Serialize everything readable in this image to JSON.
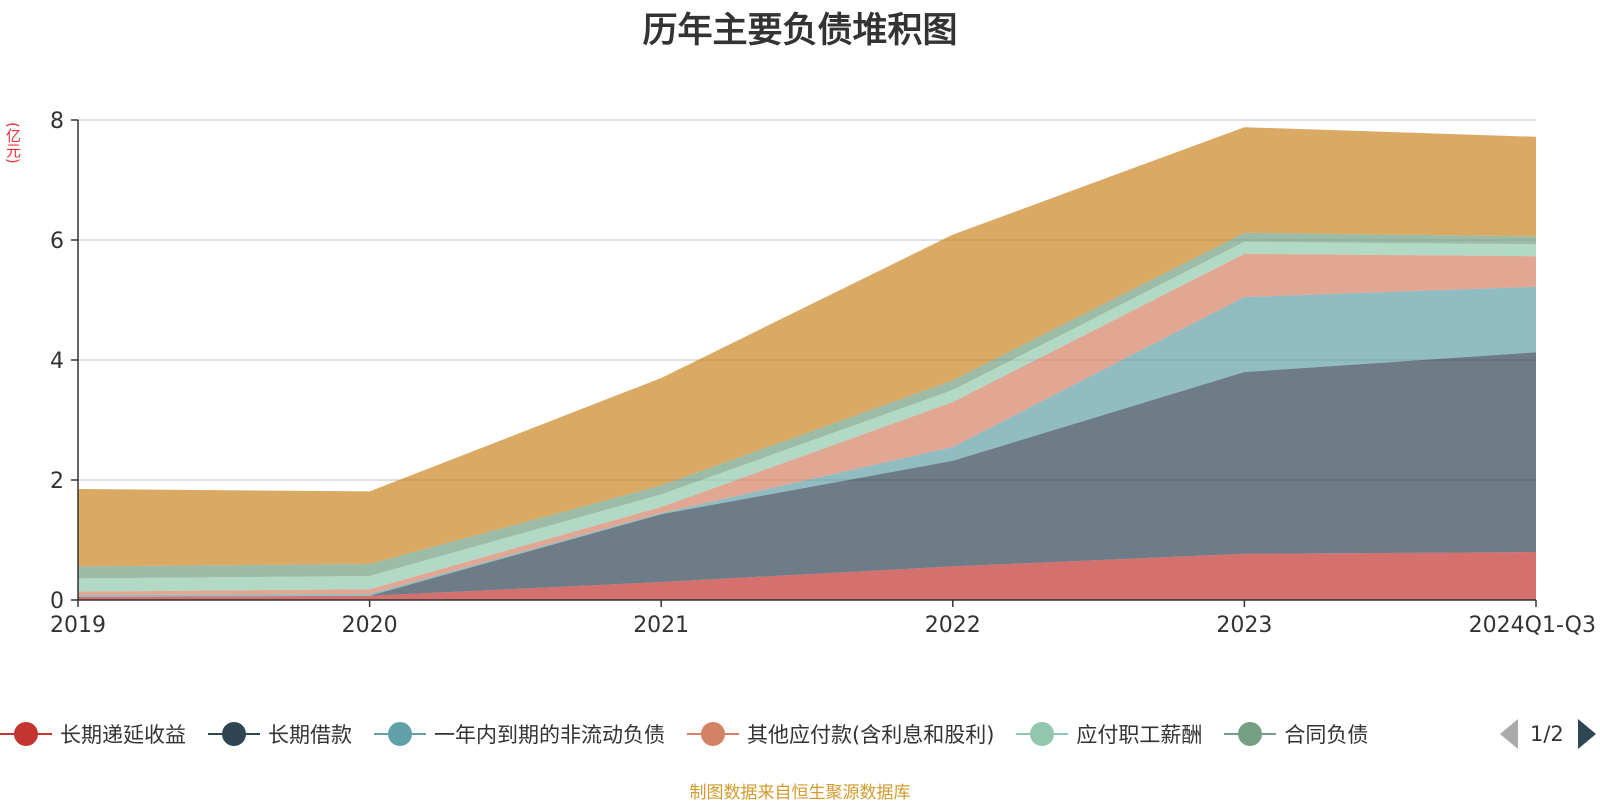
{
  "colors": {
    "series": [
      "#c23531",
      "#2f4554",
      "#61a0a8",
      "#d48265",
      "#91c7ae",
      "#749f83",
      "#ca8622"
    ],
    "title": "#333333",
    "unit": "#e8323c",
    "source": "#d49a2c",
    "grid": "#cccccc",
    "axis": "#333333"
  },
  "legend": {
    "pager": {
      "text": "1/2",
      "prev_icon": "triangle-left-icon",
      "next_icon": "triangle-right-icon"
    }
  },
  "chart_data": {
    "type": "area",
    "stacked": true,
    "title": "历年主要负债堆积图",
    "ylabel": "(亿元)",
    "xlabel": "",
    "categories": [
      "2019",
      "2020",
      "2021",
      "2022",
      "2023",
      "2024Q1-Q3"
    ],
    "ylim": [
      0,
      8
    ],
    "yticks": [
      0,
      2,
      4,
      6,
      8
    ],
    "grid": true,
    "legend_position": "bottom",
    "series": [
      {
        "name": "长期递延收益",
        "values": [
          0.05,
          0.07,
          0.3,
          0.56,
          0.77,
          0.8
        ]
      },
      {
        "name": "长期借款",
        "values": [
          0.0,
          0.0,
          1.13,
          1.76,
          3.03,
          3.33
        ]
      },
      {
        "name": "一年内到期的非流动负债",
        "values": [
          0.03,
          0.03,
          0.02,
          0.23,
          1.25,
          1.09
        ]
      },
      {
        "name": "其他应付款(含利息和股利)",
        "values": [
          0.06,
          0.08,
          0.1,
          0.75,
          0.72,
          0.51
        ]
      },
      {
        "name": "应付职工薪酬",
        "values": [
          0.22,
          0.22,
          0.21,
          0.2,
          0.2,
          0.2
        ]
      },
      {
        "name": "合同负债",
        "values": [
          0.2,
          0.2,
          0.15,
          0.16,
          0.15,
          0.13
        ]
      },
      {
        "name": "",
        "values": [
          1.29,
          1.21,
          1.79,
          2.43,
          1.76,
          1.66
        ]
      }
    ],
    "source": "制图数据来自恒生聚源数据库"
  }
}
